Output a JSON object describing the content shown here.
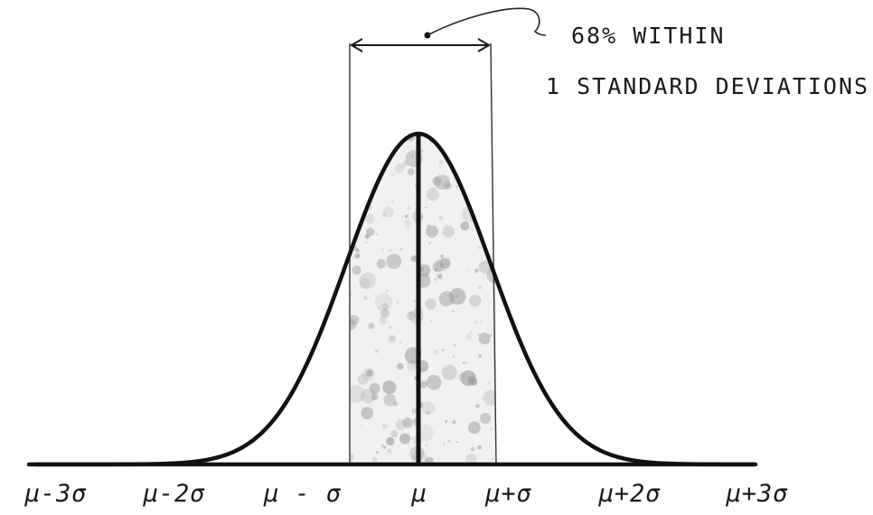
{
  "annotation": {
    "line1": "68% WITHIN",
    "line2": "1 STANDARD DEVIATIONS"
  },
  "axis": {
    "labels": [
      "μ-3σ",
      "μ-2σ",
      "μ - σ",
      "μ",
      "μ+σ",
      "μ+2σ",
      "μ+3σ"
    ]
  },
  "shaded_region": {
    "from_sigma": -1,
    "to_sigma": 1,
    "percent_within": 68
  },
  "colors": {
    "ink": "#111111",
    "shade_fill": "#f1f1f1",
    "speckle": "#9a9a9a"
  }
}
